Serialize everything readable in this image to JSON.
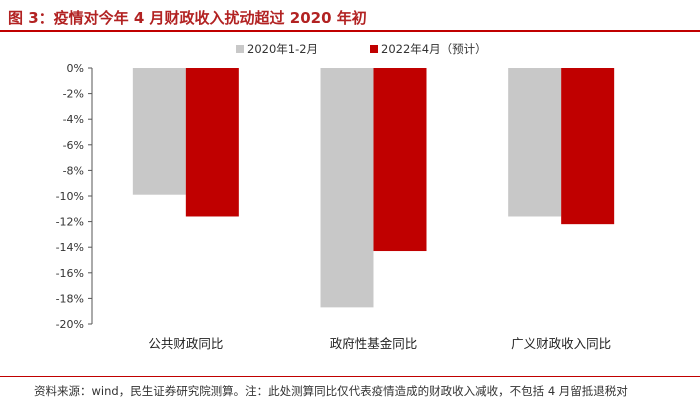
{
  "header": {
    "title": "图 3：疫情对今年 4 月财政收入扰动超过 2020 年初"
  },
  "footer": {
    "source": "资料来源：wind，民生证券研究院测算。注：此处测算同比仅代表疫情造成的财政收入减收，不包括 4 月留抵退税对"
  },
  "chart_data": {
    "type": "bar",
    "categories": [
      "公共财政同比",
      "政府性基金同比",
      "广义财政收入同比"
    ],
    "series": [
      {
        "name": "2020年1-2月",
        "values": [
          -9.9,
          -18.7,
          -11.6
        ],
        "color": "#c8c8c8"
      },
      {
        "name": "2022年4月（预计）",
        "values": [
          -11.6,
          -14.3,
          -12.2
        ],
        "color": "#c00000"
      }
    ],
    "ylim": [
      -20,
      0
    ],
    "yticks": [
      0,
      -2,
      -4,
      -6,
      -8,
      -10,
      -12,
      -14,
      -16,
      -18,
      -20
    ],
    "ytick_suffix": "%",
    "xlabel": "",
    "ylabel": "",
    "legend_position": "top",
    "grid": false
  }
}
